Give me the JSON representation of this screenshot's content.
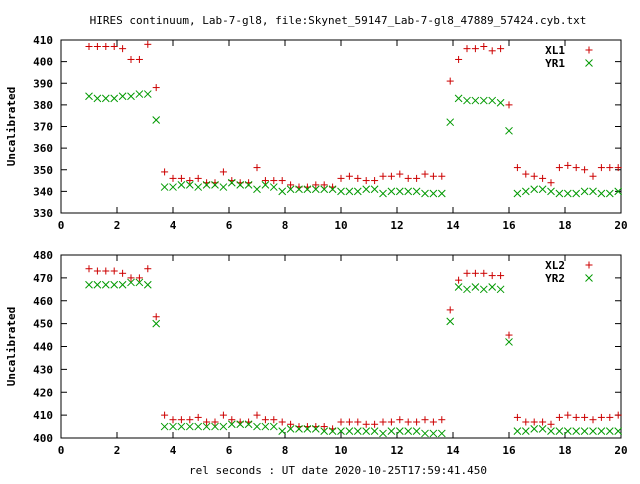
{
  "title": "HIRES continuum, Lab-7-gl8, file:Skynet_59147_Lab-7-gl8_47889_57424.cyb.txt",
  "xlabel": "rel seconds : UT date 2020-10-25T17:59:41.450",
  "colors": {
    "xl": "#cc0000",
    "yr": "#009900",
    "axis": "#000000"
  },
  "chart_data": [
    {
      "type": "scatter",
      "ylabel": "Uncalibrated",
      "xlim": [
        0,
        20
      ],
      "ylim": [
        330,
        410
      ],
      "xticks": [
        0,
        2,
        4,
        6,
        8,
        10,
        12,
        14,
        16,
        18,
        20
      ],
      "yticks": [
        330,
        340,
        350,
        360,
        370,
        380,
        390,
        400,
        410
      ],
      "legend": "top-right",
      "x": [
        1.0,
        1.3,
        1.6,
        1.9,
        2.2,
        2.5,
        2.8,
        3.1,
        3.4,
        3.7,
        4.0,
        4.3,
        4.6,
        4.9,
        5.2,
        5.5,
        5.8,
        6.1,
        6.4,
        6.7,
        7.0,
        7.3,
        7.6,
        7.9,
        8.2,
        8.5,
        8.8,
        9.1,
        9.4,
        9.7,
        10.0,
        10.3,
        10.6,
        10.9,
        11.2,
        11.5,
        11.8,
        12.1,
        12.4,
        12.7,
        13.0,
        13.3,
        13.6,
        13.9,
        14.2,
        14.5,
        14.8,
        15.1,
        15.4,
        15.7,
        16.0,
        16.3,
        16.6,
        16.9,
        17.2,
        17.5,
        17.8,
        18.1,
        18.4,
        18.7,
        19.0,
        19.3,
        19.6,
        19.9
      ],
      "series": [
        {
          "name": "XL1",
          "marker": "plus",
          "values": [
            407,
            407,
            407,
            407,
            406,
            401,
            401,
            408,
            388,
            349,
            346,
            346,
            345,
            346,
            344,
            344,
            349,
            345,
            344,
            344,
            351,
            345,
            345,
            345,
            343,
            342,
            342,
            343,
            343,
            342,
            346,
            347,
            346,
            345,
            345,
            347,
            347,
            348,
            346,
            346,
            348,
            347,
            347,
            391,
            401,
            406,
            406,
            407,
            405,
            406,
            380,
            351,
            348,
            347,
            346,
            344,
            351,
            352,
            351,
            350,
            347,
            351,
            351,
            351
          ]
        },
        {
          "name": "YR1",
          "marker": "cross",
          "values": [
            384,
            383,
            383,
            383,
            384,
            384,
            385,
            385,
            373,
            342,
            342,
            343,
            343,
            342,
            343,
            343,
            342,
            344,
            343,
            343,
            341,
            343,
            342,
            340,
            341,
            341,
            341,
            341,
            341,
            341,
            340,
            340,
            340,
            341,
            341,
            339,
            340,
            340,
            340,
            340,
            339,
            339,
            339,
            372,
            383,
            382,
            382,
            382,
            382,
            381,
            368,
            339,
            340,
            341,
            341,
            340,
            339,
            339,
            339,
            340,
            340,
            339,
            339,
            340
          ]
        }
      ]
    },
    {
      "type": "scatter",
      "ylabel": "Uncalibrated",
      "xlim": [
        0,
        20
      ],
      "ylim": [
        400,
        480
      ],
      "xticks": [
        0,
        2,
        4,
        6,
        8,
        10,
        12,
        14,
        16,
        18,
        20
      ],
      "yticks": [
        400,
        410,
        420,
        430,
        440,
        450,
        460,
        470,
        480
      ],
      "legend": "top-right",
      "x": [
        1.0,
        1.3,
        1.6,
        1.9,
        2.2,
        2.5,
        2.8,
        3.1,
        3.4,
        3.7,
        4.0,
        4.3,
        4.6,
        4.9,
        5.2,
        5.5,
        5.8,
        6.1,
        6.4,
        6.7,
        7.0,
        7.3,
        7.6,
        7.9,
        8.2,
        8.5,
        8.8,
        9.1,
        9.4,
        9.7,
        10.0,
        10.3,
        10.6,
        10.9,
        11.2,
        11.5,
        11.8,
        12.1,
        12.4,
        12.7,
        13.0,
        13.3,
        13.6,
        13.9,
        14.2,
        14.5,
        14.8,
        15.1,
        15.4,
        15.7,
        16.0,
        16.3,
        16.6,
        16.9,
        17.2,
        17.5,
        17.8,
        18.1,
        18.4,
        18.7,
        19.0,
        19.3,
        19.6,
        19.9
      ],
      "series": [
        {
          "name": "XL2",
          "marker": "plus",
          "values": [
            474,
            473,
            473,
            473,
            472,
            470,
            470,
            474,
            453,
            410,
            408,
            408,
            408,
            409,
            407,
            407,
            410,
            408,
            407,
            407,
            410,
            408,
            408,
            407,
            406,
            405,
            405,
            405,
            405,
            404,
            407,
            407,
            407,
            406,
            406,
            407,
            407,
            408,
            407,
            407,
            408,
            407,
            408,
            456,
            469,
            472,
            472,
            472,
            471,
            471,
            445,
            409,
            407,
            407,
            407,
            406,
            409,
            410,
            409,
            409,
            408,
            409,
            409,
            410
          ]
        },
        {
          "name": "YR2",
          "marker": "cross",
          "values": [
            467,
            467,
            467,
            467,
            467,
            468,
            468,
            467,
            450,
            405,
            405,
            405,
            405,
            405,
            405,
            405,
            405,
            406,
            406,
            406,
            405,
            405,
            405,
            403,
            404,
            404,
            404,
            404,
            403,
            403,
            403,
            403,
            403,
            403,
            403,
            402,
            403,
            403,
            403,
            403,
            402,
            402,
            402,
            451,
            466,
            465,
            466,
            465,
            466,
            465,
            442,
            403,
            403,
            404,
            404,
            403,
            403,
            403,
            403,
            403,
            403,
            403,
            403,
            403
          ]
        }
      ]
    }
  ]
}
